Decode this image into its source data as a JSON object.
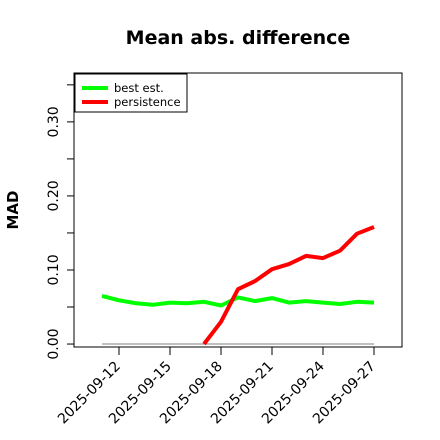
{
  "chart_data": {
    "type": "line",
    "title": "Mean abs. difference",
    "xlabel": "",
    "ylabel": "MAD",
    "x": [
      "2025-09-11",
      "2025-09-12",
      "2025-09-13",
      "2025-09-14",
      "2025-09-15",
      "2025-09-16",
      "2025-09-17",
      "2025-09-18",
      "2025-09-19",
      "2025-09-20",
      "2025-09-21",
      "2025-09-22",
      "2025-09-23",
      "2025-09-24",
      "2025-09-25",
      "2025-09-26",
      "2025-09-27"
    ],
    "x_tick_labels": [
      "2025-09-12",
      "2025-09-15",
      "2025-09-18",
      "2025-09-21",
      "2025-09-24",
      "2025-09-27"
    ],
    "y_ticks": [
      "0.00",
      "0.10",
      "0.20",
      "0.30"
    ],
    "y_tick_values": [
      0.0,
      0.05,
      0.1,
      0.15,
      0.2,
      0.25,
      0.3,
      0.35
    ],
    "ylim": [
      -0.004,
      0.366
    ],
    "reference_line": 0.0,
    "grid": false,
    "legend_position": "top-left",
    "series": [
      {
        "name": "best est.",
        "color": "#00ff00",
        "values": [
          0.065,
          0.059,
          0.055,
          0.053,
          0.056,
          0.055,
          0.057,
          0.052,
          0.063,
          0.058,
          0.062,
          0.056,
          0.058,
          0.056,
          0.054,
          0.057,
          0.056
        ]
      },
      {
        "name": "persistence",
        "color": "#ff0000",
        "values": [
          null,
          null,
          null,
          null,
          null,
          null,
          0.0,
          0.03,
          0.074,
          0.085,
          0.101,
          0.108,
          0.119,
          0.116,
          0.126,
          0.149,
          0.158
        ]
      }
    ]
  }
}
